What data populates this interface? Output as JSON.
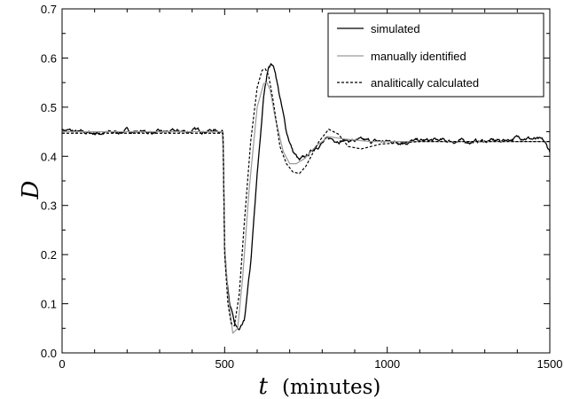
{
  "chart_data": {
    "type": "line",
    "xlabel_symbol": "t",
    "xlabel_unit": "(minutes)",
    "ylabel": "D",
    "xlim": [
      0,
      1500
    ],
    "ylim": [
      0,
      0.7
    ],
    "x_ticks": [
      0,
      500,
      1000,
      1500
    ],
    "x_minor_step": 100,
    "y_ticks": [
      0.0,
      0.1,
      0.2,
      0.3,
      0.4,
      0.5,
      0.6,
      0.7
    ],
    "y_tick_labels": [
      "0.0",
      "0.1",
      "0.2",
      "0.3",
      "0.4",
      "0.5",
      "0.6",
      "0.7"
    ],
    "y_minor_step": 0.05,
    "grid": false,
    "legend_position": "top-right",
    "series": [
      {
        "name": "simulated",
        "color": "#000000",
        "style": "solid",
        "noisy": true,
        "x": [
          0,
          50,
          100,
          150,
          200,
          250,
          300,
          350,
          400,
          450,
          495,
          500,
          505,
          515,
          530,
          545,
          560,
          580,
          600,
          620,
          635,
          645,
          655,
          670,
          690,
          710,
          730,
          750,
          780,
          820,
          870,
          950,
          1050,
          1150,
          1250,
          1350,
          1420,
          1450,
          1480,
          1500
        ],
        "y": [
          0.455,
          0.448,
          0.447,
          0.448,
          0.452,
          0.45,
          0.448,
          0.45,
          0.452,
          0.453,
          0.452,
          0.22,
          0.17,
          0.1,
          0.06,
          0.042,
          0.06,
          0.18,
          0.36,
          0.52,
          0.585,
          0.59,
          0.575,
          0.52,
          0.45,
          0.41,
          0.39,
          0.398,
          0.42,
          0.435,
          0.433,
          0.43,
          0.43,
          0.432,
          0.43,
          0.432,
          0.44,
          0.435,
          0.43,
          0.41
        ]
      },
      {
        "name": "manually identified",
        "color": "#9a9a9a",
        "style": "solid",
        "noisy": false,
        "x": [
          0,
          495,
          500,
          510,
          525,
          540,
          555,
          575,
          600,
          620,
          630,
          640,
          655,
          680,
          700,
          720,
          745,
          780,
          820,
          870,
          950,
          1100,
          1500
        ],
        "y": [
          0.45,
          0.45,
          0.22,
          0.12,
          0.04,
          0.05,
          0.15,
          0.33,
          0.5,
          0.548,
          0.55,
          0.535,
          0.48,
          0.41,
          0.385,
          0.385,
          0.395,
          0.42,
          0.44,
          0.435,
          0.43,
          0.43,
          0.43
        ]
      },
      {
        "name": "analitically calculated",
        "color": "#000000",
        "style": "dashed",
        "noisy": false,
        "x": [
          0,
          495,
          500,
          510,
          520,
          530,
          545,
          560,
          580,
          600,
          615,
          625,
          635,
          650,
          670,
          690,
          710,
          730,
          750,
          790,
          820,
          850,
          880,
          920,
          980,
          1100,
          1500
        ],
        "y": [
          0.447,
          0.447,
          0.2,
          0.1,
          0.06,
          0.055,
          0.12,
          0.26,
          0.43,
          0.54,
          0.575,
          0.578,
          0.565,
          0.51,
          0.42,
          0.385,
          0.368,
          0.365,
          0.38,
          0.43,
          0.455,
          0.445,
          0.42,
          0.415,
          0.425,
          0.43,
          0.43
        ]
      }
    ]
  }
}
